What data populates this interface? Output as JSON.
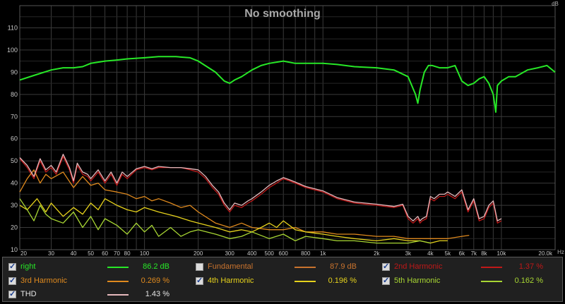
{
  "chart_data": {
    "type": "line",
    "title": "No smoothing",
    "y_unit": "dB",
    "x_unit": "Hz",
    "xlim": [
      20,
      20000
    ],
    "ylim": [
      10,
      120
    ],
    "x_scale": "log",
    "grid": true,
    "x_ticks": [
      "20",
      "30",
      "40",
      "50",
      "60",
      "70",
      "80",
      "100",
      "200",
      "300",
      "400",
      "500",
      "600",
      "800",
      "1k",
      "2k",
      "3k",
      "4k",
      "5k",
      "6k",
      "7k",
      "8k",
      "10k",
      "20.0k"
    ],
    "x_tick_values": [
      20,
      30,
      40,
      50,
      60,
      70,
      80,
      100,
      200,
      300,
      400,
      500,
      600,
      800,
      1000,
      2000,
      3000,
      4000,
      5000,
      6000,
      7000,
      8000,
      10000,
      20000
    ],
    "y_ticks": [
      "10",
      "20",
      "30",
      "40",
      "50",
      "60",
      "70",
      "80",
      "90",
      "100",
      "110"
    ],
    "y_tick_values": [
      10,
      20,
      30,
      40,
      50,
      60,
      70,
      80,
      90,
      100,
      110
    ],
    "series": [
      {
        "name": "right",
        "color": "#27e827",
        "x": [
          20,
          25,
          30,
          35,
          40,
          45,
          50,
          60,
          70,
          80,
          100,
          120,
          150,
          180,
          200,
          250,
          280,
          300,
          320,
          350,
          400,
          450,
          500,
          600,
          700,
          800,
          1000,
          1200,
          1500,
          2000,
          2500,
          3000,
          3300,
          3400,
          3500,
          3700,
          3900,
          4100,
          4500,
          5000,
          5500,
          6000,
          6500,
          7000,
          7500,
          8000,
          8500,
          9000,
          9300,
          9500,
          10000,
          11000,
          12000,
          14000,
          16000,
          18000,
          20000
        ],
        "y": [
          86.5,
          89,
          91,
          92,
          92,
          92.5,
          94,
          95,
          95.5,
          96,
          96.5,
          97,
          97,
          96.5,
          95,
          90,
          86,
          85,
          86.5,
          88,
          91,
          93,
          94,
          95,
          94,
          94,
          94,
          93.5,
          92.5,
          92,
          91,
          88,
          80,
          76,
          82,
          90,
          93,
          93,
          92,
          92,
          93,
          86,
          84,
          85,
          87,
          88,
          85,
          80,
          72,
          84,
          86,
          88,
          88,
          91,
          92,
          93,
          90
        ]
      },
      {
        "name": "Fundamental",
        "color": "#c9732e",
        "hidden": true,
        "x": [],
        "y": []
      },
      {
        "name": "2nd Harmonic",
        "color": "#c01818",
        "x": [
          20,
          22,
          24,
          26,
          28,
          30,
          32,
          35,
          38,
          40,
          42,
          45,
          48,
          50,
          55,
          60,
          65,
          70,
          75,
          80,
          90,
          100,
          110,
          120,
          140,
          160,
          180,
          200,
          220,
          240,
          260,
          280,
          300,
          320,
          350,
          380,
          400,
          450,
          500,
          550,
          600,
          650,
          700,
          800,
          1000,
          1200,
          1500,
          2000,
          2500,
          2800,
          3000,
          3200,
          3400,
          3500,
          3600,
          3800,
          4000,
          4200,
          4500,
          4800,
          5000,
          5500,
          6000,
          6500,
          7000,
          7500,
          8000,
          8500,
          9000,
          9500,
          10000
        ],
        "y": [
          51,
          47,
          42,
          50,
          45,
          47,
          44,
          52,
          46,
          40,
          48,
          44,
          43,
          41,
          45,
          40,
          44,
          39,
          44,
          42,
          46,
          47,
          46,
          47,
          47,
          47,
          46,
          45,
          42,
          38,
          35,
          30,
          27,
          30,
          29,
          31,
          32,
          35,
          38,
          40,
          42,
          41,
          40,
          38,
          36,
          33,
          31,
          30,
          29,
          30,
          24,
          22,
          24,
          22,
          23,
          24,
          33,
          32,
          34,
          34,
          35,
          33,
          36,
          27,
          32,
          23,
          24,
          29,
          31,
          22,
          23
        ]
      },
      {
        "name": "3rd Harmonic",
        "color": "#e08a1e",
        "x": [
          20,
          22,
          24,
          26,
          28,
          30,
          35,
          40,
          45,
          50,
          55,
          60,
          70,
          80,
          90,
          100,
          110,
          120,
          140,
          160,
          180,
          200,
          250,
          300,
          350,
          400,
          500,
          600,
          700,
          800,
          1000,
          1200,
          1500,
          2000,
          2500,
          3000,
          4000,
          5000,
          6000,
          6600
        ],
        "y": [
          36,
          42,
          46,
          40,
          44,
          42,
          45,
          38,
          43,
          39,
          40,
          37,
          36,
          35,
          33,
          34,
          32,
          33,
          31,
          29,
          30,
          27,
          22,
          20,
          22,
          20,
          19,
          19,
          20,
          18,
          18,
          17,
          17,
          16,
          16,
          15,
          15,
          15,
          16,
          16.5
        ]
      },
      {
        "name": "4th Harmonic",
        "color": "#e6d21c",
        "x": [
          20,
          22,
          25,
          28,
          30,
          35,
          40,
          45,
          50,
          55,
          60,
          70,
          80,
          90,
          100,
          120,
          150,
          180,
          200,
          250,
          300,
          350,
          400,
          450,
          500,
          550,
          600,
          700,
          800,
          1000,
          1200,
          1500,
          2000,
          2500,
          3000,
          3500,
          4000,
          4500,
          5000
        ],
        "y": [
          30,
          28,
          33,
          27,
          31,
          25,
          29,
          26,
          31,
          28,
          33,
          30,
          28,
          27,
          29,
          27,
          25,
          23,
          22,
          20,
          18,
          19,
          18,
          20,
          22,
          20,
          23,
          19,
          18,
          17,
          16,
          15,
          14,
          15,
          14,
          14,
          13,
          14,
          14
        ]
      },
      {
        "name": "5th Harmonic",
        "color": "#a8d633",
        "x": [
          20,
          22,
          24,
          26,
          28,
          30,
          35,
          40,
          45,
          50,
          55,
          60,
          70,
          80,
          90,
          100,
          110,
          120,
          140,
          160,
          180,
          200,
          250,
          300,
          350,
          400,
          500,
          600,
          700,
          800,
          1000,
          1200,
          1500,
          2000,
          2500,
          3000,
          3500,
          4000
        ],
        "y": [
          33,
          28,
          23,
          30,
          26,
          24,
          22,
          27,
          20,
          25,
          19,
          24,
          21,
          17,
          22,
          18,
          21,
          16,
          20,
          16,
          18,
          19,
          17,
          15,
          16,
          18,
          15,
          17,
          14,
          16,
          15,
          14,
          14,
          13,
          13,
          13,
          14,
          13
        ]
      },
      {
        "name": "THD",
        "color": "#e6b9bc",
        "x": [
          20,
          22,
          24,
          26,
          28,
          30,
          32,
          35,
          38,
          40,
          42,
          45,
          48,
          50,
          55,
          60,
          65,
          70,
          75,
          80,
          90,
          100,
          110,
          120,
          140,
          160,
          180,
          200,
          220,
          240,
          260,
          280,
          300,
          320,
          350,
          380,
          400,
          450,
          500,
          550,
          600,
          650,
          700,
          800,
          1000,
          1200,
          1500,
          2000,
          2500,
          2800,
          3000,
          3200,
          3400,
          3500,
          3600,
          3800,
          4000,
          4200,
          4500,
          4800,
          5000,
          5500,
          6000,
          6500,
          7000,
          7500,
          8000,
          8500,
          9000,
          9500,
          10000
        ],
        "y": [
          51.5,
          48,
          43,
          51,
          46,
          48,
          45,
          53,
          47,
          41,
          49,
          45,
          44,
          42,
          46,
          41,
          45,
          40,
          45,
          43,
          46.5,
          47.5,
          46.5,
          47.5,
          47,
          47,
          46.5,
          46,
          43,
          39,
          36,
          31,
          28,
          31,
          30,
          32,
          33,
          36,
          39,
          41,
          42.5,
          41.5,
          40.5,
          38.5,
          36.5,
          33.5,
          31.5,
          30.5,
          29.5,
          30.5,
          25,
          23,
          25,
          23,
          24,
          25,
          34,
          33,
          35,
          35,
          36,
          34,
          37,
          28,
          33,
          24,
          25,
          30,
          32,
          23,
          24
        ]
      }
    ]
  },
  "legend": [
    {
      "label": "right",
      "value": "86.2 dB",
      "checked": true,
      "color": "#27e827",
      "label_color": "#27e827"
    },
    {
      "label": "Fundamental",
      "value": "87.9 dB",
      "checked": false,
      "color": "#c9732e",
      "label_color": "#c9732e"
    },
    {
      "label": "2nd Harmonic",
      "value": "1.37 %",
      "checked": true,
      "color": "#c01818",
      "label_color": "#c01818"
    },
    {
      "label": "3rd Harmonic",
      "value": "0.269 %",
      "checked": true,
      "color": "#e08a1e",
      "label_color": "#e08a1e"
    },
    {
      "label": "4th Harmonic",
      "value": "0.196 %",
      "checked": true,
      "color": "#e6d21c",
      "label_color": "#e6d21c"
    },
    {
      "label": "5th Harmonic",
      "value": "0.162 %",
      "checked": true,
      "color": "#a8d633",
      "label_color": "#a8d633"
    },
    {
      "label": "THD",
      "value": "1.43 %",
      "checked": true,
      "color": "#e6b9bc",
      "label_color": "#e6e6e6"
    }
  ]
}
